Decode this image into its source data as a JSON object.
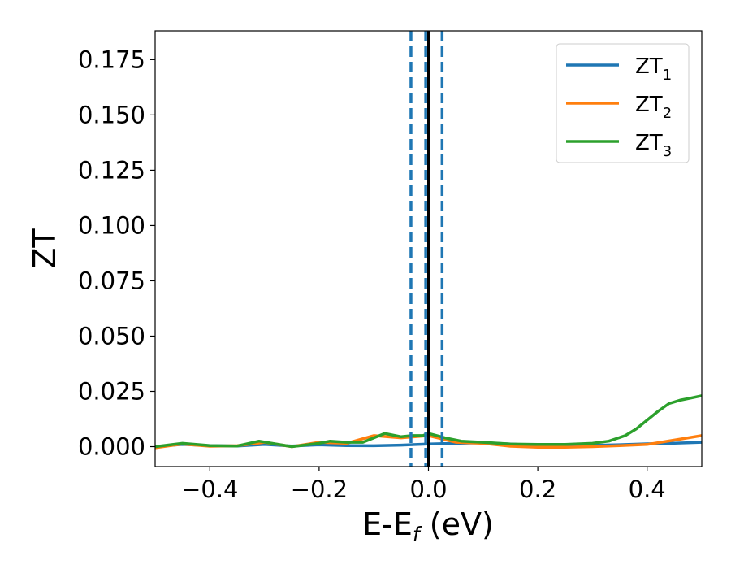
{
  "chart_data": {
    "type": "line",
    "title": "",
    "xlabel": {
      "main": "E-E",
      "sub": "f",
      "unit": " (eV)"
    },
    "ylabel": "ZT",
    "xlim": [
      -0.5,
      0.5
    ],
    "ylim": [
      -0.009,
      0.188
    ],
    "xticks": [
      -0.4,
      -0.2,
      0.0,
      0.2,
      0.4
    ],
    "xtick_labels": [
      "−0.4",
      "−0.2",
      "0.0",
      "0.2",
      "0.4"
    ],
    "yticks": [
      0.0,
      0.025,
      0.05,
      0.075,
      0.1,
      0.125,
      0.15,
      0.175
    ],
    "ytick_labels": [
      "0.000",
      "0.025",
      "0.050",
      "0.075",
      "0.100",
      "0.125",
      "0.150",
      "0.175"
    ],
    "legend_position": "top-right",
    "grid": false,
    "vlines": [
      {
        "x": -0.032,
        "style": "dashed",
        "color": "#1f77b4"
      },
      {
        "x": -0.005,
        "style": "dashed",
        "color": "#1f77b4"
      },
      {
        "x": 0.0,
        "style": "solid",
        "color": "#000000"
      },
      {
        "x": 0.025,
        "style": "dashed",
        "color": "#1f77b4"
      }
    ],
    "series": [
      {
        "name": "ZT",
        "sub": "1",
        "color": "#1f77b4",
        "x": [
          -0.5,
          -0.45,
          -0.4,
          -0.35,
          -0.3,
          -0.25,
          -0.2,
          -0.15,
          -0.1,
          -0.05,
          0.0,
          0.05,
          0.1,
          0.15,
          0.2,
          0.25,
          0.3,
          0.35,
          0.4,
          0.45,
          0.5
        ],
        "y": [
          0.0,
          0.001,
          0.0005,
          0.0003,
          0.001,
          0.0003,
          0.0008,
          0.0005,
          0.0004,
          0.0007,
          0.0012,
          0.0015,
          0.0018,
          0.0012,
          0.0005,
          0.0005,
          0.0006,
          0.0009,
          0.0013,
          0.0016,
          0.002
        ]
      },
      {
        "name": "ZT",
        "sub": "2",
        "color": "#ff7f0e",
        "x": [
          -0.5,
          -0.45,
          -0.4,
          -0.35,
          -0.3,
          -0.25,
          -0.2,
          -0.15,
          -0.1,
          -0.05,
          0.0,
          0.05,
          0.1,
          0.15,
          0.2,
          0.25,
          0.3,
          0.35,
          0.4,
          0.45,
          0.5
        ],
        "y": [
          -0.0005,
          0.0012,
          0.0002,
          0.0004,
          0.002,
          0.0,
          0.002,
          0.0015,
          0.005,
          0.004,
          0.005,
          0.002,
          0.0015,
          0.0002,
          -0.0003,
          -0.0003,
          0.0,
          0.0005,
          0.001,
          0.003,
          0.005
        ]
      },
      {
        "name": "ZT",
        "sub": "3",
        "color": "#2ca02c",
        "x": [
          -0.5,
          -0.45,
          -0.4,
          -0.35,
          -0.31,
          -0.25,
          -0.2,
          -0.18,
          -0.15,
          -0.12,
          -0.08,
          -0.05,
          -0.03,
          -0.01,
          0.0,
          0.03,
          0.06,
          0.1,
          0.15,
          0.2,
          0.25,
          0.3,
          0.33,
          0.36,
          0.38,
          0.4,
          0.42,
          0.44,
          0.46,
          0.48,
          0.5
        ],
        "y": [
          0.0,
          0.0015,
          0.0005,
          0.0003,
          0.0025,
          0.0,
          0.0015,
          0.0025,
          0.002,
          0.002,
          0.006,
          0.0045,
          0.005,
          0.005,
          0.006,
          0.004,
          0.0025,
          0.002,
          0.0012,
          0.001,
          0.001,
          0.0015,
          0.0025,
          0.005,
          0.008,
          0.012,
          0.016,
          0.0195,
          0.021,
          0.022,
          0.023
        ]
      }
    ]
  }
}
